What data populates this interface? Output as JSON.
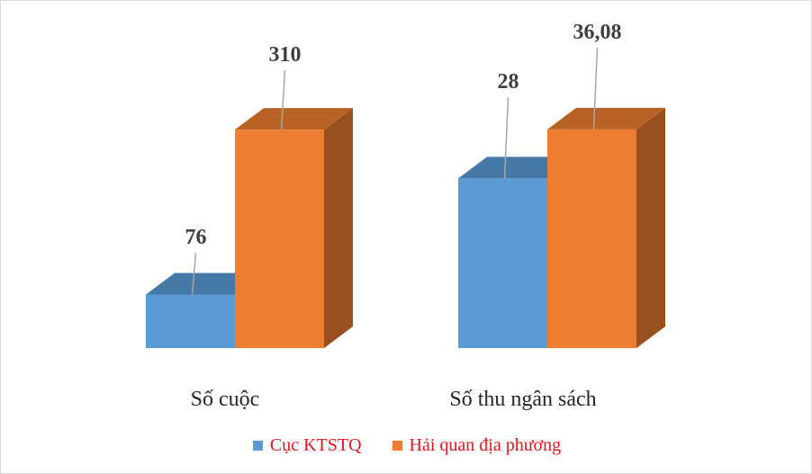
{
  "chart_data": {
    "type": "bar",
    "categories": [
      "Số cuộc",
      "Số thu ngân sách"
    ],
    "series": [
      {
        "name": "Cục KTSTQ",
        "values": [
          76,
          28
        ],
        "labels": [
          "76",
          "28"
        ],
        "color": "#5b9bd5"
      },
      {
        "name": "Hải quan địa phương",
        "values": [
          310,
          36.08
        ],
        "labels": [
          "310",
          "36,08"
        ],
        "color": "#ed7d31"
      }
    ],
    "legend_position": "bottom",
    "grid": false,
    "three_d": true
  },
  "legend": {
    "text_color": "#e4151f"
  }
}
